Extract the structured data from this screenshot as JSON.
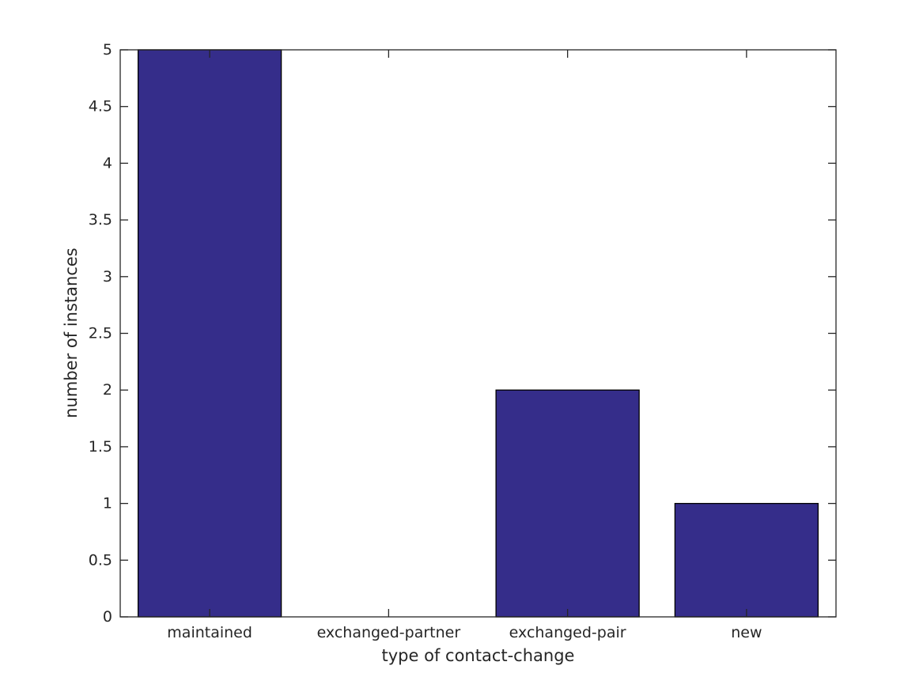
{
  "chart_data": {
    "type": "bar",
    "title": "",
    "categories": [
      "maintained",
      "exchanged-partner",
      "exchanged-pair",
      "new"
    ],
    "values": [
      5,
      0,
      2,
      1
    ],
    "xlabel": "type of contact-change",
    "ylabel": "number of instances",
    "ylim": [
      0,
      5
    ],
    "ytick_values": [
      0,
      0.5,
      1,
      1.5,
      2,
      2.5,
      3,
      3.5,
      4,
      4.5,
      5
    ],
    "ytick_labels": [
      "0",
      "0.5",
      "1",
      "1.5",
      "2",
      "2.5",
      "3",
      "3.5",
      "4",
      "4.5",
      "5"
    ],
    "bar_width_fraction": 0.8,
    "bar_color": "#352d8a",
    "bar_edge_color": "#000000",
    "axis_color": "#262626",
    "background_color": "#ffffff",
    "grid": false,
    "legend": false,
    "tick_direction": "in",
    "box": true
  }
}
